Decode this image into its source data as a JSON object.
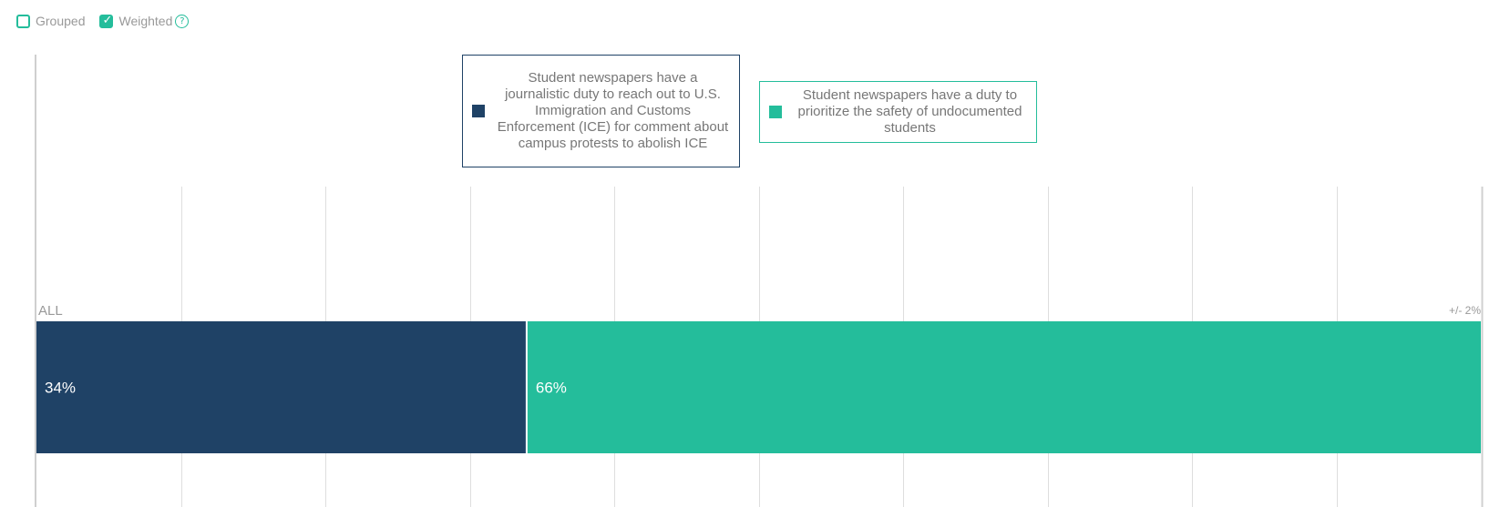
{
  "controls": {
    "grouped": {
      "label": "Grouped",
      "checked": false
    },
    "weighted": {
      "label": "Weighted",
      "checked": true,
      "help": "?"
    }
  },
  "chart_data": {
    "type": "bar",
    "orientation": "horizontal",
    "stacked": true,
    "stack_mode": "percent",
    "categories": [
      "ALL"
    ],
    "series": [
      {
        "name": "Student newspapers have a journalistic duty to reach out to U.S. Immigration and Customs Enforcement (ICE) for comment about campus protests to abolish ICE",
        "values": [
          34
        ],
        "color": "#1f4266",
        "label": "34%"
      },
      {
        "name": "Student newspapers have a duty to prioritize the safety of undocumented students",
        "values": [
          66
        ],
        "color": "#24bd9b",
        "label": "66%"
      }
    ],
    "xlim": [
      0,
      100
    ],
    "grid": true,
    "margin_of_error": "+/- 2%",
    "legend": "top"
  }
}
